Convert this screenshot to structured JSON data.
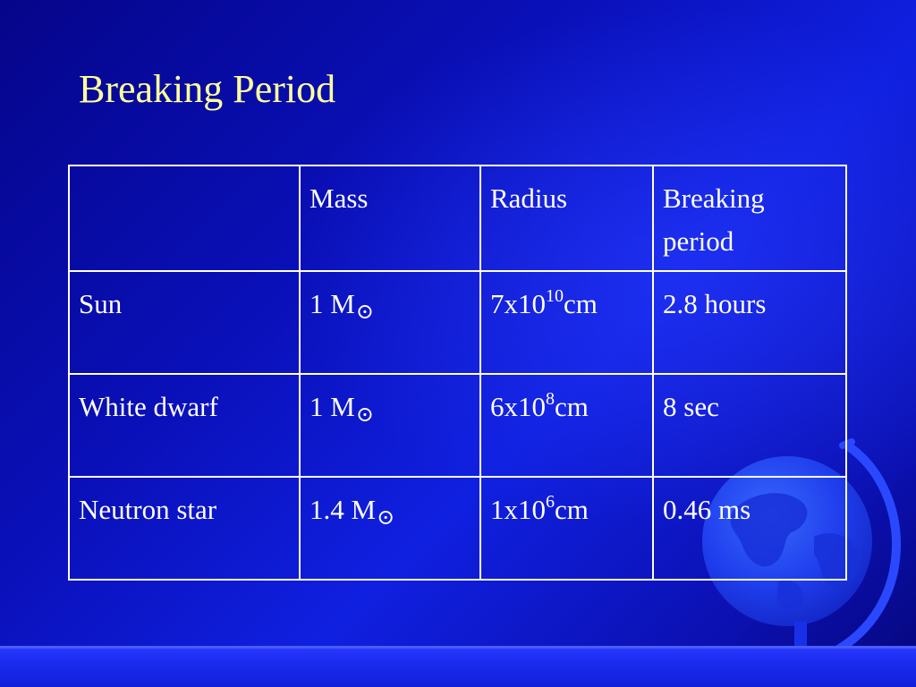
{
  "slide": {
    "title": "Breaking Period"
  },
  "table": {
    "header": [
      "",
      "Mass",
      "Radius",
      "Breaking period"
    ],
    "rows": [
      {
        "object": "Sun",
        "mass_value": "1 M",
        "mass_symbol": "⊙",
        "radius_base": "7x10",
        "radius_exp": "10",
        "radius_unit": "cm",
        "period": "2.8 hours"
      },
      {
        "object": "White dwarf",
        "mass_value": "1 M",
        "mass_symbol": "⊙",
        "radius_base": "6x10",
        "radius_exp": "8",
        "radius_unit": "cm",
        "period": "8 sec"
      },
      {
        "object": "Neutron star",
        "mass_value": "1.4 M",
        "mass_symbol": "⊙",
        "radius_base": "1x10",
        "radius_exp": "6",
        "radius_unit": "cm",
        "period": "0.46 ms"
      }
    ]
  },
  "colors": {
    "background": "#0a10b8",
    "title": "#ffff99",
    "text": "#ffffff",
    "bottom_bar": "#1b2bf0"
  },
  "decorations": {
    "globe_icon": "globe-icon"
  }
}
